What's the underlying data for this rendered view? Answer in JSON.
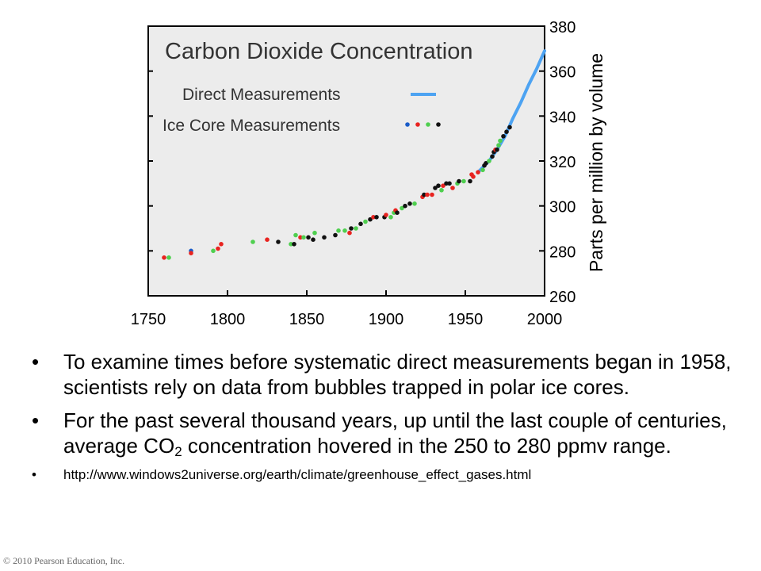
{
  "chart_data": {
    "type": "scatter",
    "title": "Carbon Dioxide Concentration",
    "ylabel": "Parts per million by volume",
    "xlabel": "",
    "xlim": [
      1750,
      2000
    ],
    "ylim": [
      260,
      380
    ],
    "x_ticks": [
      "1750",
      "1800",
      "1850",
      "1900",
      "1950",
      "2000"
    ],
    "y_ticks": [
      "260",
      "280",
      "300",
      "320",
      "340",
      "360",
      "380"
    ],
    "y_axis_side": "right",
    "legend_position": "top-left",
    "legend": [
      {
        "label": "Direct Measurements",
        "kind": "line",
        "color": "#4da3f2"
      },
      {
        "label": "Ice Core Measurements",
        "kind": "dots",
        "colors": [
          "#1a5cc8",
          "#e8231f",
          "#4fcf4f",
          "#111111"
        ]
      }
    ],
    "series": [
      {
        "name": "Direct Measurements",
        "kind": "line",
        "color": "#4da3f2",
        "x": [
          1958,
          1965,
          1970,
          1975,
          1980,
          1985,
          1990,
          1995,
          2000
        ],
        "y": [
          315,
          320,
          325,
          331,
          339,
          346,
          354,
          361,
          369
        ]
      },
      {
        "name": "Ice Core Measurements",
        "kind": "scatter",
        "points": [
          {
            "x": 1760,
            "y": 277,
            "c": "#e8231f"
          },
          {
            "x": 1763,
            "y": 277,
            "c": "#4fcf4f"
          },
          {
            "x": 1777,
            "y": 280,
            "c": "#1a5cc8"
          },
          {
            "x": 1777,
            "y": 279,
            "c": "#e8231f"
          },
          {
            "x": 1791,
            "y": 280,
            "c": "#4fcf4f"
          },
          {
            "x": 1794,
            "y": 281,
            "c": "#e8231f"
          },
          {
            "x": 1796,
            "y": 283,
            "c": "#e8231f"
          },
          {
            "x": 1816,
            "y": 284,
            "c": "#4fcf4f"
          },
          {
            "x": 1825,
            "y": 285,
            "c": "#e8231f"
          },
          {
            "x": 1832,
            "y": 284,
            "c": "#111111"
          },
          {
            "x": 1840,
            "y": 283,
            "c": "#4fcf4f"
          },
          {
            "x": 1842,
            "y": 283,
            "c": "#111111"
          },
          {
            "x": 1843,
            "y": 287,
            "c": "#4fcf4f"
          },
          {
            "x": 1846,
            "y": 286,
            "c": "#e8231f"
          },
          {
            "x": 1848,
            "y": 286,
            "c": "#4fcf4f"
          },
          {
            "x": 1851,
            "y": 286,
            "c": "#111111"
          },
          {
            "x": 1854,
            "y": 285,
            "c": "#111111"
          },
          {
            "x": 1855,
            "y": 288,
            "c": "#4fcf4f"
          },
          {
            "x": 1861,
            "y": 286,
            "c": "#111111"
          },
          {
            "x": 1868,
            "y": 287,
            "c": "#111111"
          },
          {
            "x": 1870,
            "y": 289,
            "c": "#4fcf4f"
          },
          {
            "x": 1874,
            "y": 289,
            "c": "#4fcf4f"
          },
          {
            "x": 1877,
            "y": 288,
            "c": "#e8231f"
          },
          {
            "x": 1878,
            "y": 290,
            "c": "#111111"
          },
          {
            "x": 1881,
            "y": 290,
            "c": "#4fcf4f"
          },
          {
            "x": 1884,
            "y": 292,
            "c": "#111111"
          },
          {
            "x": 1887,
            "y": 293,
            "c": "#4fcf4f"
          },
          {
            "x": 1890,
            "y": 294,
            "c": "#111111"
          },
          {
            "x": 1892,
            "y": 295,
            "c": "#e8231f"
          },
          {
            "x": 1894,
            "y": 295,
            "c": "#111111"
          },
          {
            "x": 1899,
            "y": 295,
            "c": "#111111"
          },
          {
            "x": 1900,
            "y": 296,
            "c": "#e8231f"
          },
          {
            "x": 1903,
            "y": 295,
            "c": "#4fcf4f"
          },
          {
            "x": 1905,
            "y": 297,
            "c": "#4fcf4f"
          },
          {
            "x": 1906,
            "y": 298,
            "c": "#e8231f"
          },
          {
            "x": 1907,
            "y": 297,
            "c": "#111111"
          },
          {
            "x": 1910,
            "y": 299,
            "c": "#4fcf4f"
          },
          {
            "x": 1912,
            "y": 300,
            "c": "#111111"
          },
          {
            "x": 1915,
            "y": 301,
            "c": "#111111"
          },
          {
            "x": 1918,
            "y": 301,
            "c": "#4fcf4f"
          },
          {
            "x": 1923,
            "y": 304,
            "c": "#e8231f"
          },
          {
            "x": 1924,
            "y": 305,
            "c": "#111111"
          },
          {
            "x": 1926,
            "y": 305,
            "c": "#e8231f"
          },
          {
            "x": 1929,
            "y": 305,
            "c": "#e8231f"
          },
          {
            "x": 1931,
            "y": 308,
            "c": "#111111"
          },
          {
            "x": 1933,
            "y": 309,
            "c": "#111111"
          },
          {
            "x": 1935,
            "y": 307,
            "c": "#4fcf4f"
          },
          {
            "x": 1936,
            "y": 309,
            "c": "#e8231f"
          },
          {
            "x": 1938,
            "y": 310,
            "c": "#111111"
          },
          {
            "x": 1940,
            "y": 310,
            "c": "#111111"
          },
          {
            "x": 1942,
            "y": 308,
            "c": "#e8231f"
          },
          {
            "x": 1945,
            "y": 310,
            "c": "#4fcf4f"
          },
          {
            "x": 1946,
            "y": 311,
            "c": "#111111"
          },
          {
            "x": 1949,
            "y": 311,
            "c": "#4fcf4f"
          },
          {
            "x": 1953,
            "y": 311,
            "c": "#111111"
          },
          {
            "x": 1954,
            "y": 314,
            "c": "#e8231f"
          },
          {
            "x": 1955,
            "y": 313,
            "c": "#e8231f"
          },
          {
            "x": 1958,
            "y": 315,
            "c": "#e8231f"
          },
          {
            "x": 1961,
            "y": 316,
            "c": "#4fcf4f"
          },
          {
            "x": 1962,
            "y": 318,
            "c": "#111111"
          },
          {
            "x": 1963,
            "y": 319,
            "c": "#111111"
          },
          {
            "x": 1965,
            "y": 320,
            "c": "#4fcf4f"
          },
          {
            "x": 1967,
            "y": 322,
            "c": "#111111"
          },
          {
            "x": 1968,
            "y": 324,
            "c": "#111111"
          },
          {
            "x": 1969,
            "y": 325,
            "c": "#e8231f"
          },
          {
            "x": 1970,
            "y": 325,
            "c": "#111111"
          },
          {
            "x": 1971,
            "y": 327,
            "c": "#4fcf4f"
          },
          {
            "x": 1972,
            "y": 329,
            "c": "#4fcf4f"
          },
          {
            "x": 1974,
            "y": 331,
            "c": "#111111"
          },
          {
            "x": 1976,
            "y": 333,
            "c": "#111111"
          },
          {
            "x": 1978,
            "y": 335,
            "c": "#111111"
          }
        ]
      }
    ]
  },
  "bullets": {
    "items": [
      "To examine times before systematic direct measurements began in 1958, scientists rely on data from bubbles trapped in polar ice cores."
    ],
    "item2": {
      "before": "For the past several thousand years, up until the last couple of centuries, average CO",
      "sub": "2",
      "after": " concentration hovered in the 250 to 280 ppmv range."
    },
    "link": "http://www.windows2universe.org/earth/climate/greenhouse_effect_gases.html"
  },
  "copyright": "© 2010 Pearson Education, Inc."
}
